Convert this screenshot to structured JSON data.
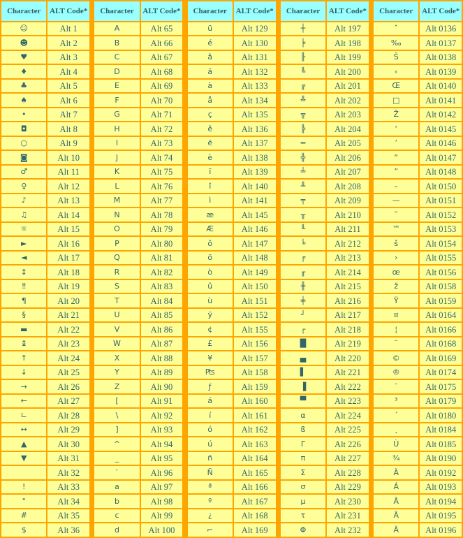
{
  "headers": {
    "character": "Character",
    "alt_code": "ALT Code*"
  },
  "colors": {
    "border": "#FFA500",
    "cell": "#FFFF99",
    "header": "#99FFFF",
    "text": "#336666"
  },
  "tables": [
    {
      "rows": [
        [
          "☺",
          "Alt 1"
        ],
        [
          "☻",
          "Alt 2"
        ],
        [
          "♥",
          "Alt 3"
        ],
        [
          "♦",
          "Alt 4"
        ],
        [
          "♣",
          "Alt 5"
        ],
        [
          "♠",
          "Alt 6"
        ],
        [
          "•",
          "Alt 7"
        ],
        [
          "◘",
          "Alt 8"
        ],
        [
          "○",
          "Alt 9"
        ],
        [
          "◙",
          "Alt 10"
        ],
        [
          "♂",
          "Alt 11"
        ],
        [
          "♀",
          "Alt 12"
        ],
        [
          "♪",
          "Alt 13"
        ],
        [
          "♫",
          "Alt 14"
        ],
        [
          "☼",
          "Alt 15"
        ],
        [
          "►",
          "Alt 16"
        ],
        [
          "◄",
          "Alt 17"
        ],
        [
          "↕",
          "Alt 18"
        ],
        [
          "‼",
          "Alt 19"
        ],
        [
          "¶",
          "Alt 20"
        ],
        [
          "§",
          "Alt 21"
        ],
        [
          "▬",
          "Alt 22"
        ],
        [
          "↨",
          "Alt 23"
        ],
        [
          "↑",
          "Alt 24"
        ],
        [
          "↓",
          "Alt 25"
        ],
        [
          "→",
          "Alt 26"
        ],
        [
          "←",
          "Alt 27"
        ],
        [
          "∟",
          "Alt 28"
        ],
        [
          "↔",
          "Alt 29"
        ],
        [
          "▲",
          "Alt 30"
        ],
        [
          "▼",
          "Alt 31"
        ],
        [
          " ",
          "Alt 32"
        ],
        [
          "!",
          "Alt 33"
        ],
        [
          "\"",
          "Alt 34"
        ],
        [
          "#",
          "Alt 35"
        ],
        [
          "$",
          "Alt 36"
        ]
      ]
    },
    {
      "rows": [
        [
          "A",
          "Alt 65"
        ],
        [
          "B",
          "Alt 66"
        ],
        [
          "C",
          "Alt 67"
        ],
        [
          "D",
          "Alt 68"
        ],
        [
          "E",
          "Alt 69"
        ],
        [
          "F",
          "Alt 70"
        ],
        [
          "G",
          "Alt 71"
        ],
        [
          "H",
          "Alt 72"
        ],
        [
          "I",
          "Alt 73"
        ],
        [
          "J",
          "Alt 74"
        ],
        [
          "K",
          "Alt 75"
        ],
        [
          "L",
          "Alt 76"
        ],
        [
          "M",
          "Alt 77"
        ],
        [
          "N",
          "Alt 78"
        ],
        [
          "O",
          "Alt 79"
        ],
        [
          "P",
          "Alt 80"
        ],
        [
          "Q",
          "Alt 81"
        ],
        [
          "R",
          "Alt 82"
        ],
        [
          "S",
          "Alt 83"
        ],
        [
          "T",
          "Alt 84"
        ],
        [
          "U",
          "Alt 85"
        ],
        [
          "V",
          "Alt 86"
        ],
        [
          "W",
          "Alt 87"
        ],
        [
          "X",
          "Alt 88"
        ],
        [
          "Y",
          "Alt 89"
        ],
        [
          "Z",
          "Alt 90"
        ],
        [
          "[",
          "Alt 91"
        ],
        [
          "\\",
          "Alt 92"
        ],
        [
          "]",
          "Alt 93"
        ],
        [
          "^",
          "Alt 94"
        ],
        [
          "_",
          "Alt 95"
        ],
        [
          "`",
          "Alt 96"
        ],
        [
          "a",
          "Alt 97"
        ],
        [
          "b",
          "Alt 98"
        ],
        [
          "c",
          "Alt 99"
        ],
        [
          "d",
          "Alt 100"
        ]
      ]
    },
    {
      "rows": [
        [
          "ü",
          "Alt 129"
        ],
        [
          "é",
          "Alt 130"
        ],
        [
          "â",
          "Alt 131"
        ],
        [
          "ä",
          "Alt 132"
        ],
        [
          "à",
          "Alt 133"
        ],
        [
          "å",
          "Alt 134"
        ],
        [
          "ç",
          "Alt 135"
        ],
        [
          "ê",
          "Alt 136"
        ],
        [
          "ë",
          "Alt 137"
        ],
        [
          "è",
          "Alt 138"
        ],
        [
          "ï",
          "Alt 139"
        ],
        [
          "î",
          "Alt 140"
        ],
        [
          "ì",
          "Alt 141"
        ],
        [
          "æ",
          "Alt 145"
        ],
        [
          "Æ",
          "Alt 146"
        ],
        [
          "ô",
          "Alt 147"
        ],
        [
          "ö",
          "Alt 148"
        ],
        [
          "ò",
          "Alt 149"
        ],
        [
          "û",
          "Alt 150"
        ],
        [
          "ù",
          "Alt 151"
        ],
        [
          "ÿ",
          "Alt 152"
        ],
        [
          "¢",
          "Alt 155"
        ],
        [
          "£",
          "Alt 156"
        ],
        [
          "¥",
          "Alt 157"
        ],
        [
          "₧",
          "Alt 158"
        ],
        [
          "ƒ",
          "Alt 159"
        ],
        [
          "á",
          "Alt 160"
        ],
        [
          "í",
          "Alt 161"
        ],
        [
          "ó",
          "Alt 162"
        ],
        [
          "ú",
          "Alt 163"
        ],
        [
          "ñ",
          "Alt 164"
        ],
        [
          "Ñ",
          "Alt 165"
        ],
        [
          "ª",
          "Alt 166"
        ],
        [
          "º",
          "Alt 167"
        ],
        [
          "¿",
          "Alt 168"
        ],
        [
          "⌐",
          "Alt 169"
        ]
      ]
    },
    {
      "rows": [
        [
          "┼",
          "Alt 197"
        ],
        [
          "╞",
          "Alt 198"
        ],
        [
          "╟",
          "Alt 199"
        ],
        [
          "╚",
          "Alt 200"
        ],
        [
          "╔",
          "Alt 201"
        ],
        [
          "╩",
          "Alt 202"
        ],
        [
          "╦",
          "Alt 203"
        ],
        [
          "╠",
          "Alt 204"
        ],
        [
          "═",
          "Alt 205"
        ],
        [
          "╬",
          "Alt 206"
        ],
        [
          "╧",
          "Alt 207"
        ],
        [
          "╨",
          "Alt 208"
        ],
        [
          "╤",
          "Alt 209"
        ],
        [
          "╥",
          "Alt 210"
        ],
        [
          "╙",
          "Alt 211"
        ],
        [
          "╘",
          "Alt 212"
        ],
        [
          "╒",
          "Alt 213"
        ],
        [
          "╓",
          "Alt 214"
        ],
        [
          "╫",
          "Alt 215"
        ],
        [
          "╪",
          "Alt 216"
        ],
        [
          "┘",
          "Alt 217"
        ],
        [
          "┌",
          "Alt 218"
        ],
        [
          "█",
          "Alt 219"
        ],
        [
          "▄",
          "Alt 220"
        ],
        [
          "▌",
          "Alt 221"
        ],
        [
          "▐",
          "Alt 222"
        ],
        [
          "▀",
          "Alt 223"
        ],
        [
          "α",
          "Alt 224"
        ],
        [
          "ß",
          "Alt 225"
        ],
        [
          "Γ",
          "Alt 226"
        ],
        [
          "π",
          "Alt 227"
        ],
        [
          "Σ",
          "Alt 228"
        ],
        [
          "σ",
          "Alt 229"
        ],
        [
          "µ",
          "Alt 230"
        ],
        [
          "τ",
          "Alt 231"
        ],
        [
          "Φ",
          "Alt 232"
        ]
      ]
    },
    {
      "rows": [
        [
          "ˆ",
          "Alt 0136"
        ],
        [
          "‰",
          "Alt 0137"
        ],
        [
          "Š",
          "Alt 0138"
        ],
        [
          "‹",
          "Alt 0139"
        ],
        [
          "Œ",
          "Alt 0140"
        ],
        [
          "□",
          "Alt 0141"
        ],
        [
          "Ž",
          "Alt 0142"
        ],
        [
          "‘",
          "Alt 0145"
        ],
        [
          "’",
          "Alt 0146"
        ],
        [
          "“",
          "Alt 0147"
        ],
        [
          "”",
          "Alt 0148"
        ],
        [
          "–",
          "Alt 0150"
        ],
        [
          "—",
          "Alt 0151"
        ],
        [
          "˜",
          "Alt 0152"
        ],
        [
          "™",
          "Alt 0153"
        ],
        [
          "š",
          "Alt 0154"
        ],
        [
          "›",
          "Alt 0155"
        ],
        [
          "œ",
          "Alt 0156"
        ],
        [
          "ž",
          "Alt 0158"
        ],
        [
          "Ÿ",
          "Alt 0159"
        ],
        [
          "¤",
          "Alt 0164"
        ],
        [
          "¦",
          "Alt 0166"
        ],
        [
          "¨",
          "Alt 0168"
        ],
        [
          "©",
          "Alt 0169"
        ],
        [
          "®",
          "Alt 0174"
        ],
        [
          "¯",
          "Alt 0175"
        ],
        [
          "³",
          "Alt 0179"
        ],
        [
          "´",
          "Alt 0180"
        ],
        [
          "¸",
          "Alt 0184"
        ],
        [
          "Ù",
          "Alt 0185"
        ],
        [
          "¾",
          "Alt 0190"
        ],
        [
          "À",
          "Alt 0192"
        ],
        [
          "Á",
          "Alt 0193"
        ],
        [
          "Â",
          "Alt 0194"
        ],
        [
          "Ã",
          "Alt 0195"
        ],
        [
          "Ä",
          "Alt 0196"
        ]
      ]
    }
  ]
}
